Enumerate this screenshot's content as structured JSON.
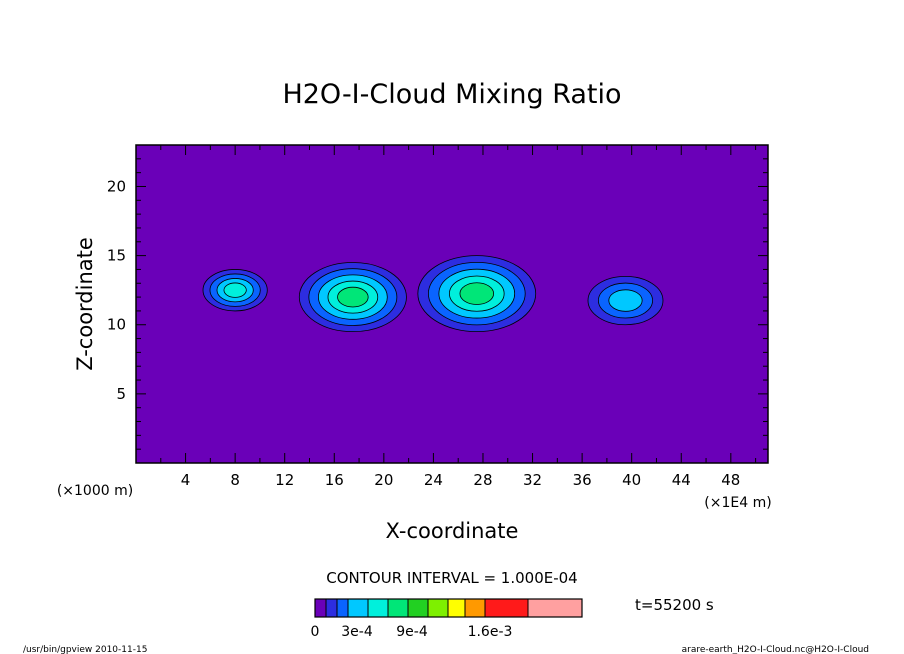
{
  "chart_data": {
    "type": "heatmap",
    "title": "H2O-I-Cloud Mixing Ratio",
    "xlabel": "X-coordinate",
    "ylabel": "Z-coordinate",
    "x_unit": "(×1E4 m)",
    "y_unit": "(×1000 m)",
    "xlim": [
      0,
      51
    ],
    "ylim": [
      0,
      23
    ],
    "x_ticks": [
      4,
      8,
      12,
      16,
      20,
      24,
      28,
      32,
      36,
      40,
      44,
      48
    ],
    "y_ticks": [
      5,
      10,
      15,
      20
    ],
    "contour_interval_text": "CONTOUR INTERVAL = 1.000E-04",
    "time_label": "t=55200 s",
    "background_level": 0,
    "colorbar": {
      "colors": [
        "#6a00b8",
        "#2d2de0",
        "#0a64ff",
        "#00c8ff",
        "#00f0dc",
        "#00e678",
        "#22d022",
        "#7ef000",
        "#ffff00",
        "#ff9900",
        "#ff1a1a",
        "#ffa0a0"
      ],
      "tick_labels": [
        "0",
        "3e-4",
        "9e-4",
        "1.6e-3"
      ]
    },
    "cloud_cells": [
      {
        "x": 8,
        "z_bottom": 11,
        "z_top": 14,
        "peak_level": 4
      },
      {
        "x": 17.5,
        "z_bottom": 9.5,
        "z_top": 14.5,
        "peak_level": 5
      },
      {
        "x": 27.5,
        "z_bottom": 9.5,
        "z_top": 15,
        "peak_level": 5
      },
      {
        "x": 39.5,
        "z_bottom": 10,
        "z_top": 13.5,
        "peak_level": 3
      }
    ],
    "footer_left": "/usr/bin/gpview   2010-11-15",
    "footer_right": "arare-earth_H2O-I-Cloud.nc@H2O-I-Cloud"
  }
}
